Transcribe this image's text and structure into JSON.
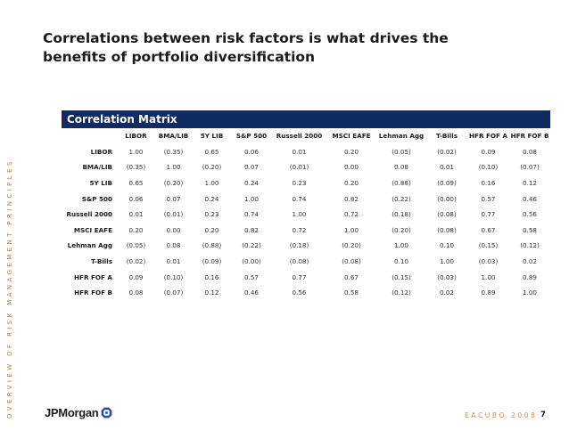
{
  "slide": {
    "title": "Correlations between risk factors is what drives the benefits of portfolio diversification",
    "side_text": "OVERVIEW OF RISK MANAGEMENT PRINCIPLES",
    "brand": "JPMorgan",
    "logo_icon": "octagon-logo-icon",
    "event": "EACUBO 2008",
    "page_number": "7"
  },
  "matrix": {
    "title": "Correlation Matrix",
    "header_color": "#112a60",
    "columns": [
      "LIBOR",
      "BMA/LIB",
      "5Y LIB",
      "S&P 500",
      "Russell 2000",
      "MSCI EAFE",
      "Lehman Agg",
      "T-Bills",
      "HFR FOF A",
      "HFR FOF B"
    ],
    "rows": [
      {
        "label": "LIBOR",
        "values": [
          "1.00",
          "(0.35)",
          "0.65",
          "0.06",
          "0.01",
          "0.20",
          "(0.05)",
          "(0.02)",
          "0.09",
          "0.08"
        ]
      },
      {
        "label": "BMA/LIB",
        "values": [
          "(0.35)",
          "1.00",
          "(0.20)",
          "0.07",
          "(0.01)",
          "0.00",
          "0.08",
          "0.01",
          "(0.10)",
          "(0.07)"
        ]
      },
      {
        "label": "5Y LIB",
        "values": [
          "0.65",
          "(0.20)",
          "1.00",
          "0.24",
          "0.23",
          "0.20",
          "(0.88)",
          "(0.09)",
          "0.16",
          "0.12"
        ]
      },
      {
        "label": "S&P 500",
        "values": [
          "0.06",
          "0.07",
          "0.24",
          "1.00",
          "0.74",
          "0.82",
          "(0.22)",
          "(0.00)",
          "0.57",
          "0.46"
        ]
      },
      {
        "label": "Russell 2000",
        "values": [
          "0.01",
          "(0.01)",
          "0.23",
          "0.74",
          "1.00",
          "0.72",
          "(0.18)",
          "(0.08)",
          "0.77",
          "0.56"
        ]
      },
      {
        "label": "MSCI EAFE",
        "values": [
          "0.20",
          "0.00",
          "0.20",
          "0.82",
          "0.72",
          "1.00",
          "(0.20)",
          "(0.08)",
          "0.67",
          "0.58"
        ]
      },
      {
        "label": "Lehman Agg",
        "values": [
          "(0.05)",
          "0.08",
          "(0.88)",
          "(0.22)",
          "(0.18)",
          "(0.20)",
          "1.00",
          "0.10",
          "(0.15)",
          "(0.12)"
        ]
      },
      {
        "label": "T-Bills",
        "values": [
          "(0.02)",
          "0.01",
          "(0.09)",
          "(0.00)",
          "(0.08)",
          "(0.08)",
          "0.10",
          "1.00",
          "(0.03)",
          "0.02"
        ]
      },
      {
        "label": "HFR FOF A",
        "values": [
          "0.09",
          "(0.10)",
          "0.16",
          "0.57",
          "0.77",
          "0.67",
          "(0.15)",
          "(0.03)",
          "1.00",
          "0.89"
        ]
      },
      {
        "label": "HFR FOF B",
        "values": [
          "0.08",
          "(0.07)",
          "0.12",
          "0.46",
          "0.56",
          "0.58",
          "(0.12)",
          "0.02",
          "0.89",
          "1.00"
        ]
      }
    ]
  }
}
